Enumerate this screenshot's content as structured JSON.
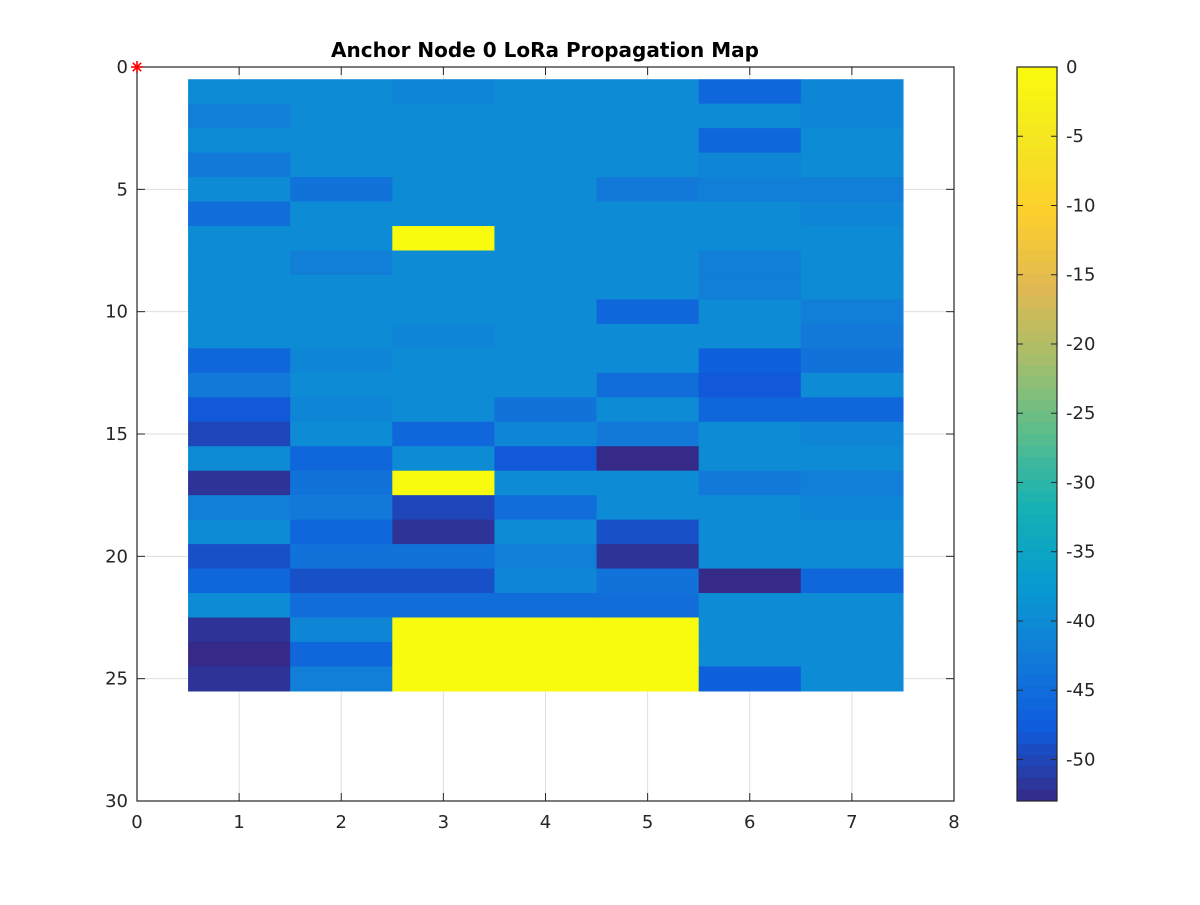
{
  "chart_data": {
    "type": "heatmap",
    "title": "Anchor Node 0 LoRa Propagation Map",
    "xlabel": "",
    "ylabel": "",
    "xlim": [
      0,
      8
    ],
    "ylim": [
      0,
      30
    ],
    "y_reversed": true,
    "grid": true,
    "x_ticks": [
      0,
      1,
      2,
      3,
      4,
      5,
      6,
      7,
      8
    ],
    "y_ticks": [
      0,
      5,
      10,
      15,
      20,
      25,
      30
    ],
    "columns": [
      1,
      2,
      3,
      4,
      5,
      6,
      7
    ],
    "rows": [
      1,
      2,
      3,
      4,
      5,
      6,
      7,
      8,
      9,
      10,
      11,
      12,
      13,
      14,
      15,
      16,
      17,
      18,
      19,
      20,
      21,
      22,
      23,
      24,
      25
    ],
    "values": [
      [
        -40,
        -40,
        -41,
        -40,
        -40,
        -46,
        -41
      ],
      [
        -42,
        -40,
        -40,
        -40,
        -40,
        -40,
        -41
      ],
      [
        -40,
        -40,
        -40,
        -40,
        -40,
        -46,
        -40
      ],
      [
        -43,
        -40,
        -40,
        -40,
        -40,
        -41,
        -40
      ],
      [
        -40,
        -44,
        -40,
        -40,
        -43,
        -42,
        -42
      ],
      [
        -45,
        -40,
        -40,
        -40,
        -40,
        -40,
        -41
      ],
      [
        -40,
        -40,
        0,
        -40,
        -40,
        -40,
        -40
      ],
      [
        -40,
        -42,
        -40,
        -40,
        -40,
        -42,
        -40
      ],
      [
        -40,
        -40,
        -40,
        -40,
        -40,
        -42,
        -40
      ],
      [
        -40,
        -40,
        -40,
        -40,
        -46,
        -40,
        -42
      ],
      [
        -40,
        -40,
        -41,
        -40,
        -40,
        -40,
        -43
      ],
      [
        -46,
        -41,
        -40,
        -40,
        -40,
        -47,
        -44
      ],
      [
        -43,
        -40,
        -40,
        -40,
        -45,
        -48,
        -40
      ],
      [
        -48,
        -41,
        -40,
        -44,
        -40,
        -46,
        -46
      ],
      [
        -50,
        -40,
        -46,
        -41,
        -43,
        -40,
        -41
      ],
      [
        -40,
        -46,
        -40,
        -48,
        -53,
        -40,
        -40
      ],
      [
        -52,
        -44,
        0,
        -40,
        -40,
        -43,
        -42
      ],
      [
        -42,
        -43,
        -50,
        -45,
        -40,
        -40,
        -41
      ],
      [
        -40,
        -46,
        -52,
        -40,
        -49,
        -40,
        -40
      ],
      [
        -49,
        -44,
        -44,
        -42,
        -52,
        -40,
        -40
      ],
      [
        -46,
        -49,
        -49,
        -41,
        -44,
        -54,
        -46
      ],
      [
        -40,
        -45,
        -45,
        -45,
        -45,
        -40,
        -40
      ],
      [
        -52,
        -41,
        0,
        0,
        0,
        -40,
        -40
      ],
      [
        -54,
        -46,
        0,
        0,
        0,
        -40,
        -40
      ],
      [
        -52,
        -42,
        0,
        0,
        0,
        -47,
        -40
      ]
    ],
    "colorbar": {
      "min": -53,
      "max": 0,
      "ticks": [
        0,
        -5,
        -10,
        -15,
        -20,
        -25,
        -30,
        -35,
        -40,
        -45,
        -50
      ],
      "colormap": "parula"
    },
    "marker": {
      "x": 0,
      "y": 0,
      "symbol": "*",
      "color": "#ff0000"
    }
  }
}
